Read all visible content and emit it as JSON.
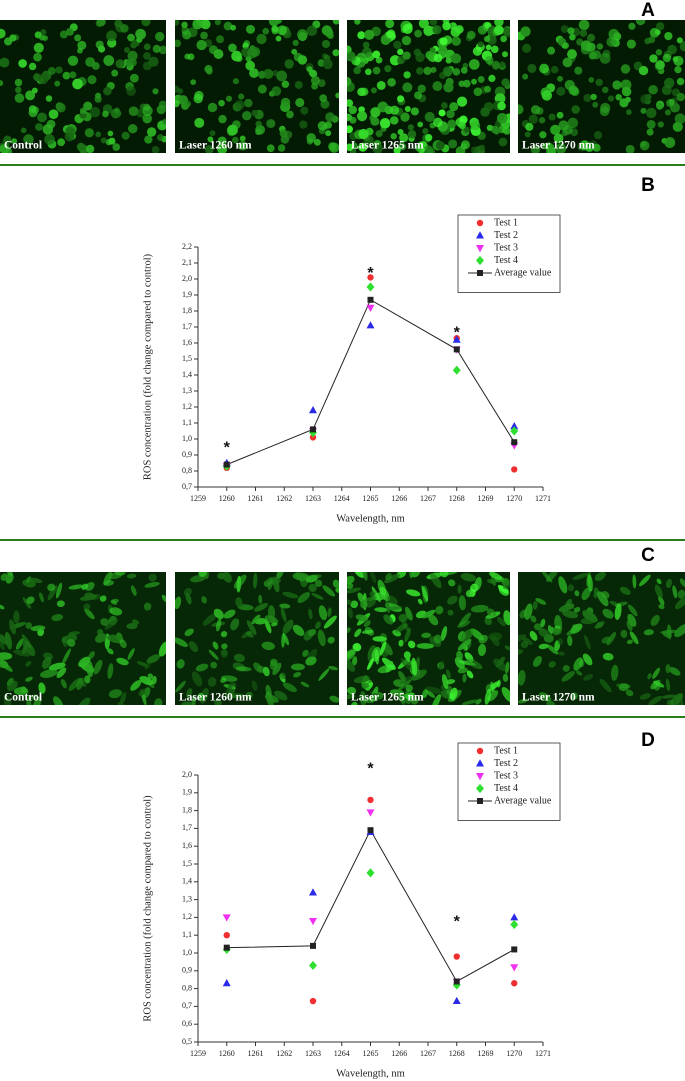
{
  "panels": [
    {
      "label": "A",
      "captions": [
        "Control",
        "Laser 1260 nm",
        "Laser 1265 nm",
        "Laser 1270 nm"
      ]
    },
    {
      "label": "B"
    },
    {
      "label": "C",
      "captions": [
        "Control",
        "Laser 1260 nm",
        "Laser 1265 nm",
        "Laser 1270 nm"
      ]
    },
    {
      "label": "D"
    }
  ],
  "chart_data": [
    {
      "type": "scatter",
      "xlabel": "Wavelength, nm",
      "ylabel": "ROS concentration (fold change compared to control)",
      "x": [
        1260,
        1263,
        1265,
        1268,
        1270
      ],
      "xlim": [
        1259,
        1271
      ],
      "xticks": [
        1259,
        1260,
        1261,
        1262,
        1263,
        1264,
        1265,
        1266,
        1267,
        1268,
        1269,
        1270,
        1271
      ],
      "ylim": [
        0.7,
        2.2
      ],
      "yticks": [
        {
          "value": 0.7,
          "label": "0,7"
        },
        {
          "value": 0.8,
          "label": "0,8"
        },
        {
          "value": 0.9,
          "label": "0,9"
        },
        {
          "value": 1.0,
          "label": "1,0"
        },
        {
          "value": 1.1,
          "label": "1,1"
        },
        {
          "value": 1.2,
          "label": "1,2"
        },
        {
          "value": 1.3,
          "label": "1,3"
        },
        {
          "value": 1.4,
          "label": "1,4"
        },
        {
          "value": 1.5,
          "label": "1,5"
        },
        {
          "value": 1.6,
          "label": "1,6"
        },
        {
          "value": 1.7,
          "label": "1,7"
        },
        {
          "value": 1.8,
          "label": "1,8"
        },
        {
          "value": 1.9,
          "label": "1,9"
        },
        {
          "value": 2.0,
          "label": "2,0"
        },
        {
          "value": 2.1,
          "label": "2,1"
        },
        {
          "value": 2.2,
          "label": "2,2"
        }
      ],
      "legend": "top-right",
      "series": [
        {
          "name": "Test 1",
          "color": "#f03030",
          "marker": "circle",
          "values": [
            0.82,
            1.01,
            2.01,
            1.63,
            0.81
          ]
        },
        {
          "name": "Test 2",
          "color": "#2a2ae8",
          "marker": "triangle-up",
          "values": [
            0.85,
            1.18,
            1.71,
            1.62,
            1.08
          ]
        },
        {
          "name": "Test 3",
          "color": "#f030f0",
          "marker": "triangle-down",
          "values": [
            0.83,
            1.05,
            1.82,
            1.56,
            0.96
          ]
        },
        {
          "name": "Test 4",
          "color": "#30e030",
          "marker": "diamond",
          "values": [
            0.83,
            1.04,
            1.95,
            1.43,
            1.05
          ]
        },
        {
          "name": "Average value",
          "color": "#222222",
          "marker": "square",
          "line": true,
          "values": [
            0.84,
            1.06,
            1.87,
            1.56,
            0.98
          ]
        }
      ],
      "annotations": [
        {
          "text": "*",
          "x": 1260,
          "y": 0.96
        },
        {
          "text": "*",
          "x": 1265,
          "y": 2.05
        },
        {
          "text": "*",
          "x": 1268,
          "y": 1.68
        }
      ]
    },
    {
      "type": "scatter",
      "xlabel": "Wavelength, nm",
      "ylabel": "ROS concentration (fold change compared to control)",
      "x": [
        1260,
        1263,
        1265,
        1268,
        1270
      ],
      "xlim": [
        1259,
        1271
      ],
      "xticks": [
        1259,
        1260,
        1261,
        1262,
        1263,
        1264,
        1265,
        1266,
        1267,
        1268,
        1269,
        1270,
        1271
      ],
      "ylim": [
        0.5,
        2.0
      ],
      "yticks": [
        {
          "value": 0.5,
          "label": "0,5"
        },
        {
          "value": 0.6,
          "label": "0,6"
        },
        {
          "value": 0.7,
          "label": "0,7"
        },
        {
          "value": 0.8,
          "label": "0,8"
        },
        {
          "value": 0.9,
          "label": "0,9"
        },
        {
          "value": 1.0,
          "label": "1,0"
        },
        {
          "value": 1.1,
          "label": "1,1"
        },
        {
          "value": 1.2,
          "label": "1,2"
        },
        {
          "value": 1.3,
          "label": "1,3"
        },
        {
          "value": 1.4,
          "label": "1,4"
        },
        {
          "value": 1.5,
          "label": "1,5"
        },
        {
          "value": 1.6,
          "label": "1,6"
        },
        {
          "value": 1.7,
          "label": "1,7"
        },
        {
          "value": 1.8,
          "label": "1,8"
        },
        {
          "value": 1.9,
          "label": "1,9"
        },
        {
          "value": 2.0,
          "label": "2,0"
        }
      ],
      "legend": "top-right",
      "series": [
        {
          "name": "Test 1",
          "color": "#f03030",
          "marker": "circle",
          "values": [
            1.1,
            0.73,
            1.86,
            0.98,
            0.83
          ]
        },
        {
          "name": "Test 2",
          "color": "#2a2ae8",
          "marker": "triangle-up",
          "values": [
            0.83,
            1.34,
            1.68,
            0.73,
            1.2
          ]
        },
        {
          "name": "Test 3",
          "color": "#f030f0",
          "marker": "triangle-down",
          "values": [
            1.2,
            1.18,
            1.79,
            0.84,
            0.92
          ]
        },
        {
          "name": "Test 4",
          "color": "#30e030",
          "marker": "diamond",
          "values": [
            1.02,
            0.93,
            1.45,
            0.82,
            1.16
          ]
        },
        {
          "name": "Average value",
          "color": "#222222",
          "marker": "square",
          "line": true,
          "values": [
            1.03,
            1.04,
            1.69,
            0.84,
            1.02
          ]
        }
      ],
      "annotations": [
        {
          "text": "*",
          "x": 1265,
          "y": 2.05
        },
        {
          "text": "*",
          "x": 1268,
          "y": 1.19
        }
      ]
    }
  ]
}
